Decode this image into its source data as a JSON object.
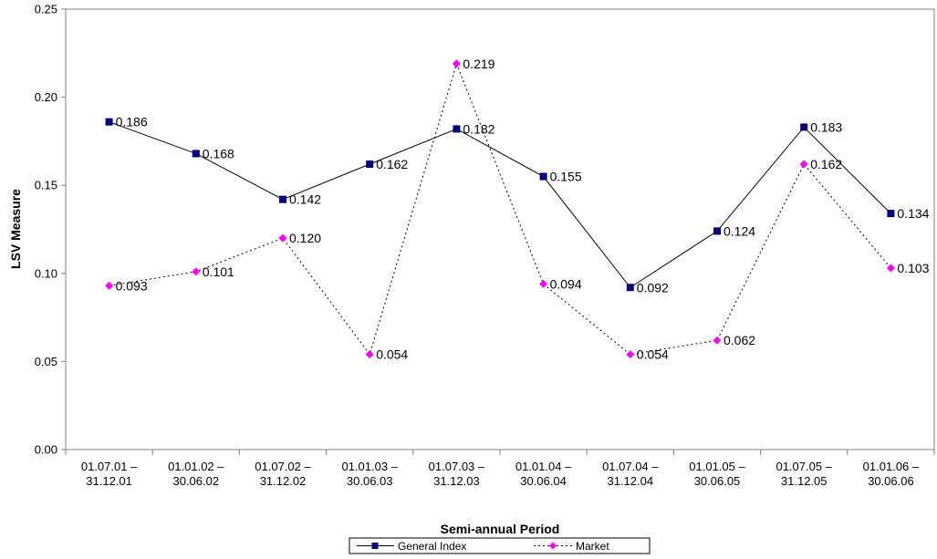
{
  "chart_data": {
    "type": "line",
    "title": "",
    "xlabel": "Semi-annual Period",
    "ylabel": "LSV Measure",
    "ylim": [
      0,
      0.25
    ],
    "yticks": [
      "0.00",
      "0.05",
      "0.10",
      "0.15",
      "0.20",
      "0.25"
    ],
    "grid": false,
    "legend_position": "bottom",
    "categories": [
      {
        "start": "01.07.01 –",
        "end": "31.12.01"
      },
      {
        "start": "01.01.02 –",
        "end": "30.06.02"
      },
      {
        "start": "01.07.02 –",
        "end": "31.12.02"
      },
      {
        "start": "01.01.03 –",
        "end": "30.06.03"
      },
      {
        "start": "01.07.03 –",
        "end": "31.12.03"
      },
      {
        "start": "01.01.04 –",
        "end": "30.06.04"
      },
      {
        "start": "01.07.04 –",
        "end": "31.12.04"
      },
      {
        "start": "01.01.05 –",
        "end": "30.06.05"
      },
      {
        "start": "01.07.05 –",
        "end": "31.12.05"
      },
      {
        "start": "01.01.06 –",
        "end": "30.06.06"
      }
    ],
    "series": [
      {
        "name": "General Index",
        "color": "#000080",
        "line_style": "solid",
        "marker": "square",
        "values": [
          0.186,
          0.168,
          0.142,
          0.162,
          0.182,
          0.155,
          0.092,
          0.124,
          0.183,
          0.134
        ],
        "labels": [
          "0.186",
          "0.168",
          "0.142",
          "0.162",
          "0.182",
          "0.155",
          "0.092",
          "0.124",
          "0.183",
          "0.134"
        ]
      },
      {
        "name": "Market",
        "color": "#ff00ff",
        "line_style": "dotted",
        "marker": "diamond",
        "values": [
          0.093,
          0.101,
          0.12,
          0.054,
          0.219,
          0.094,
          0.054,
          0.062,
          0.162,
          0.103
        ],
        "labels": [
          "0.093",
          "0.101",
          "0.120",
          "0.054",
          "0.219",
          "0.094",
          "0.054",
          "0.062",
          "0.162",
          "0.103"
        ]
      }
    ]
  }
}
